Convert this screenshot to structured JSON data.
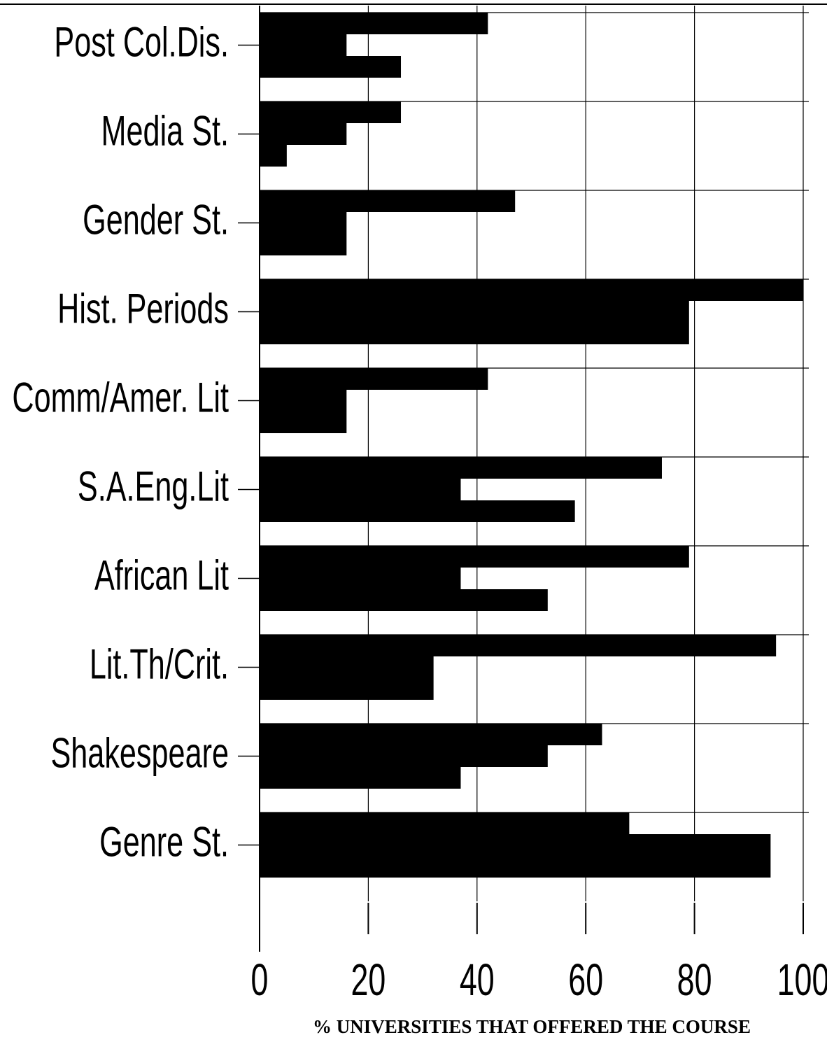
{
  "chart_data": {
    "type": "bar",
    "orientation": "horizontal",
    "categories": [
      "Post Col.Dis.",
      "Media St.",
      "Gender St.",
      "Hist. Periods",
      "Comm/Amer. Lit",
      "S.A.Eng.Lit",
      "African Lit",
      "Lit.Th/Crit.",
      "Shakespeare",
      "Genre St."
    ],
    "series": [
      {
        "color": "#000000",
        "values": [
          42,
          26,
          47,
          100,
          42,
          74,
          79,
          95,
          63,
          68
        ]
      },
      {
        "color": "#000000",
        "values": [
          16,
          16,
          16,
          79,
          16,
          37,
          37,
          32,
          53,
          94
        ]
      },
      {
        "color": "#000000",
        "values": [
          26,
          5,
          16,
          79,
          16,
          58,
          53,
          32,
          37,
          94
        ]
      }
    ],
    "xlim": [
      0,
      100
    ],
    "xticks": [
      0,
      20,
      40,
      60,
      80,
      100
    ],
    "grid": true,
    "xlabel": "% UNIVERSITIES THAT OFFERED THE COURSE"
  }
}
